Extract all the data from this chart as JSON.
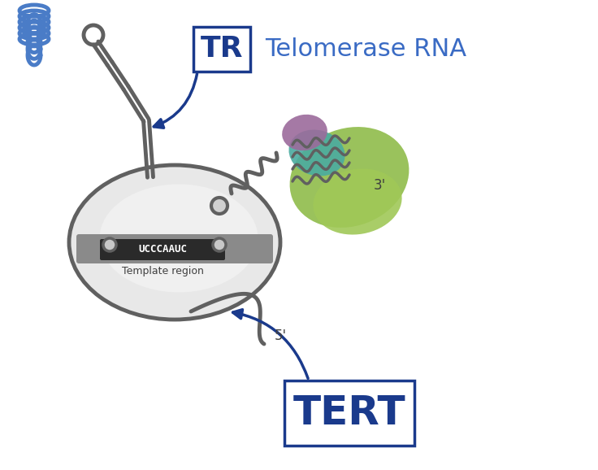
{
  "title": "",
  "bg_color": "#ffffff",
  "tr_box_text": "TR",
  "tr_label_text": "Telomerase RNA",
  "tert_box_text": "TERT",
  "template_text": "UCCCAAUC",
  "template_label": "Template region",
  "prime3_label": "3'",
  "prime5_label": "5'",
  "dark_blue": "#1a3a8c",
  "medium_blue": "#3a6bc4",
  "light_blue": "#5b9bd5",
  "gray_body": "#b0b0b0",
  "gray_light": "#d8d8d8",
  "gray_dark": "#606060",
  "gray_stroke": "#606060",
  "green_blob": "#8fbc4a",
  "teal_blob": "#4aaba0",
  "purple_blob": "#9b6b9b",
  "template_bg": "#2a2a2a",
  "coil_color": "#4a7cc7"
}
